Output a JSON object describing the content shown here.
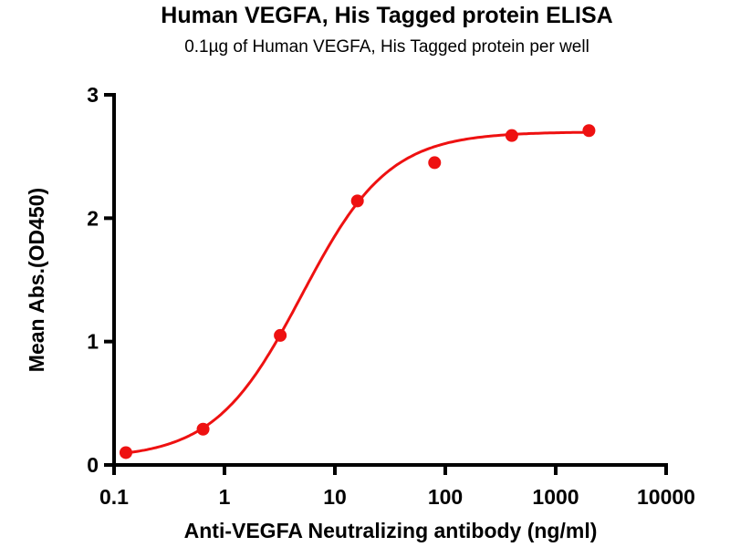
{
  "chart_data": {
    "type": "scatter",
    "title": "Human VEGFA, His Tagged protein ELISA",
    "subtitle": "0.1µg of Human VEGFA, His Tagged protein per well",
    "xlabel": "Anti-VEGFA Neutralizing antibody (ng/ml)",
    "ylabel": "Mean Abs.(OD450)",
    "xscale": "log",
    "xlim": [
      0.1,
      10000
    ],
    "ylim": [
      0,
      3
    ],
    "xticks": [
      "0.1",
      "1",
      "10",
      "100",
      "1000",
      "10000"
    ],
    "yticks": [
      "0",
      "1",
      "2",
      "3"
    ],
    "grid": false,
    "color": "#ee1111",
    "series": [
      {
        "name": "Mean Abs.",
        "x": [
          0.128,
          0.64,
          3.2,
          16,
          80,
          400,
          2000
        ],
        "y": [
          0.1,
          0.29,
          1.05,
          2.14,
          2.45,
          2.67,
          2.71
        ]
      }
    ],
    "fit": {
      "model": "4PL",
      "bottom": 0.05,
      "top": 2.7,
      "ec50": 5.0,
      "hill": 1.1
    }
  }
}
